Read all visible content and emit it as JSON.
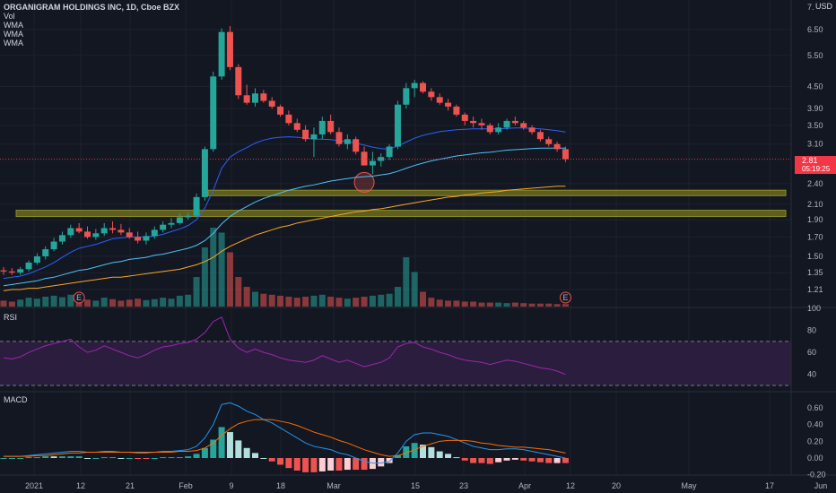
{
  "header": {
    "symbol_title": "ORGANIGRAM HOLDINGS INC, 1D, Cboe BZX",
    "indicators": [
      "Vol",
      "WMA",
      "WMA",
      "WMA"
    ],
    "currency": "USD"
  },
  "price_axis": {
    "ticks": [
      "7.",
      "6.50",
      "5.50",
      "4.50",
      "3.90",
      "3.50",
      "3.10",
      "2.40",
      "2.10",
      "1.90",
      "1.70",
      "1.50",
      "1.35",
      "1.21"
    ],
    "last_price": "2.81",
    "countdown": "05:19:25"
  },
  "rsi": {
    "label": "RSI",
    "ticks": [
      "100",
      "80",
      "60",
      "40"
    ]
  },
  "macd": {
    "label": "MACD",
    "ticks": [
      "0.60",
      "0.40",
      "0.20",
      "0.00",
      "-0.20"
    ]
  },
  "time_axis": {
    "labels": [
      "2021",
      "12",
      "21",
      "Feb",
      "9",
      "18",
      "Mar",
      "15",
      "23",
      "Apr",
      "12",
      "20",
      "May",
      "17",
      "Jun"
    ]
  },
  "earnings_markers": [
    "E",
    "E"
  ],
  "colors": {
    "up": "#26a69a",
    "down": "#ef5350",
    "background": "#131722",
    "wma_fast": "#2962ff",
    "wma_mid": "#4fc3f7",
    "wma_slow": "#f9a825",
    "zone": "#6b6b1f",
    "rsi_line": "#9c27b0",
    "rsi_band": "#2b1d3d",
    "macd_line": "#2196f3",
    "signal_line": "#ff6d00"
  },
  "chart_data": {
    "type": "candlestick",
    "dates": [
      "2021-01-04",
      "2021-01-05",
      "2021-01-06",
      "2021-01-07",
      "2021-01-08",
      "2021-01-11",
      "2021-01-12",
      "2021-01-13",
      "2021-01-14",
      "2021-01-15",
      "2021-01-19",
      "2021-01-20",
      "2021-01-21",
      "2021-01-22",
      "2021-01-25",
      "2021-01-26",
      "2021-01-27",
      "2021-01-28",
      "2021-01-29",
      "2021-02-01",
      "2021-02-02",
      "2021-02-03",
      "2021-02-04",
      "2021-02-05",
      "2021-02-08",
      "2021-02-09",
      "2021-02-10",
      "2021-02-11",
      "2021-02-12",
      "2021-02-16",
      "2021-02-17",
      "2021-02-18",
      "2021-02-19",
      "2021-02-22",
      "2021-02-23",
      "2021-02-24",
      "2021-02-25",
      "2021-02-26",
      "2021-03-01",
      "2021-03-02",
      "2021-03-03",
      "2021-03-04",
      "2021-03-05",
      "2021-03-08",
      "2021-03-09",
      "2021-03-10",
      "2021-03-11",
      "2021-03-12",
      "2021-03-15",
      "2021-03-16",
      "2021-03-17",
      "2021-03-18",
      "2021-03-19",
      "2021-03-22",
      "2021-03-23",
      "2021-03-24",
      "2021-03-25",
      "2021-03-26",
      "2021-03-29",
      "2021-03-30",
      "2021-03-31",
      "2021-04-01",
      "2021-04-05",
      "2021-04-06",
      "2021-04-07",
      "2021-04-08",
      "2021-04-09",
      "2021-04-12"
    ],
    "open": [
      1.37,
      1.36,
      1.35,
      1.38,
      1.44,
      1.5,
      1.57,
      1.65,
      1.72,
      1.8,
      1.76,
      1.7,
      1.74,
      1.8,
      1.78,
      1.75,
      1.7,
      1.66,
      1.71,
      1.78,
      1.84,
      1.86,
      1.93,
      1.95,
      2.2,
      3.0,
      4.8,
      6.4,
      5.1,
      4.25,
      4.05,
      4.3,
      4.1,
      3.95,
      3.75,
      3.55,
      3.4,
      3.2,
      3.3,
      3.6,
      3.35,
      3.1,
      3.2,
      2.95,
      2.7,
      2.78,
      2.85,
      3.05,
      4.0,
      4.45,
      4.6,
      4.35,
      4.2,
      4.05,
      3.95,
      3.75,
      3.6,
      3.55,
      3.5,
      3.35,
      3.45,
      3.6,
      3.55,
      3.45,
      3.35,
      3.2,
      3.1,
      3.0
    ],
    "high": [
      1.4,
      1.39,
      1.4,
      1.46,
      1.53,
      1.6,
      1.69,
      1.76,
      1.84,
      1.86,
      1.82,
      1.79,
      1.86,
      1.88,
      1.85,
      1.8,
      1.76,
      1.75,
      1.82,
      1.88,
      1.92,
      1.98,
      1.99,
      2.25,
      3.05,
      4.95,
      6.55,
      6.65,
      5.2,
      4.55,
      4.45,
      4.4,
      4.2,
      4.0,
      3.85,
      3.65,
      3.5,
      3.45,
      3.7,
      3.75,
      3.45,
      3.3,
      3.25,
      3.05,
      2.95,
      2.92,
      3.1,
      4.1,
      4.6,
      4.7,
      4.65,
      4.45,
      4.3,
      4.15,
      4.0,
      3.8,
      3.7,
      3.65,
      3.55,
      3.55,
      3.65,
      3.7,
      3.6,
      3.5,
      3.4,
      3.25,
      3.15,
      3.05
    ],
    "low": [
      1.33,
      1.33,
      1.33,
      1.36,
      1.42,
      1.47,
      1.55,
      1.62,
      1.69,
      1.74,
      1.68,
      1.67,
      1.71,
      1.74,
      1.72,
      1.68,
      1.63,
      1.62,
      1.68,
      1.75,
      1.8,
      1.84,
      1.9,
      1.93,
      2.15,
      2.95,
      4.7,
      5.0,
      4.15,
      4.0,
      3.95,
      4.05,
      3.9,
      3.7,
      3.5,
      3.35,
      3.15,
      2.85,
      3.2,
      3.3,
      3.05,
      3.0,
      2.9,
      2.7,
      2.55,
      2.68,
      2.8,
      3.0,
      3.9,
      4.2,
      4.3,
      4.1,
      4.0,
      3.85,
      3.7,
      3.5,
      3.45,
      3.4,
      3.3,
      3.3,
      3.4,
      3.5,
      3.4,
      3.3,
      3.15,
      3.05,
      2.95,
      2.76
    ],
    "close": [
      1.36,
      1.35,
      1.38,
      1.44,
      1.5,
      1.57,
      1.65,
      1.72,
      1.8,
      1.76,
      1.7,
      1.74,
      1.8,
      1.78,
      1.75,
      1.7,
      1.66,
      1.71,
      1.78,
      1.84,
      1.86,
      1.93,
      1.95,
      2.2,
      3.0,
      4.8,
      6.4,
      5.1,
      4.25,
      4.05,
      4.3,
      4.1,
      3.95,
      3.75,
      3.55,
      3.4,
      3.2,
      3.3,
      3.6,
      3.35,
      3.1,
      3.2,
      2.95,
      2.7,
      2.78,
      2.85,
      3.05,
      4.0,
      4.45,
      4.6,
      4.35,
      4.2,
      4.05,
      3.95,
      3.75,
      3.6,
      3.55,
      3.5,
      3.35,
      3.45,
      3.6,
      3.55,
      3.45,
      3.35,
      3.2,
      3.1,
      3.0,
      2.81
    ],
    "volume": [
      12,
      10,
      14,
      18,
      16,
      20,
      22,
      19,
      24,
      16,
      14,
      12,
      18,
      15,
      12,
      14,
      16,
      13,
      15,
      18,
      16,
      22,
      24,
      60,
      120,
      160,
      150,
      110,
      60,
      40,
      30,
      26,
      24,
      22,
      20,
      18,
      20,
      22,
      24,
      20,
      18,
      16,
      18,
      20,
      22,
      24,
      26,
      40,
      100,
      70,
      30,
      18,
      14,
      12,
      12,
      10,
      10,
      8,
      8,
      8,
      7,
      8,
      7,
      6,
      6,
      6,
      5,
      5
    ],
    "rsi": [
      55,
      54,
      56,
      60,
      63,
      66,
      68,
      70,
      72,
      65,
      60,
      62,
      66,
      63,
      60,
      57,
      55,
      58,
      62,
      65,
      66,
      68,
      69,
      72,
      78,
      88,
      92,
      72,
      64,
      60,
      63,
      60,
      58,
      55,
      53,
      52,
      51,
      53,
      57,
      54,
      51,
      53,
      50,
      47,
      49,
      51,
      55,
      65,
      68,
      69,
      65,
      63,
      60,
      58,
      55,
      53,
      52,
      51,
      49,
      51,
      53,
      52,
      50,
      48,
      46,
      45,
      43,
      40
    ],
    "macd": [
      0.02,
      0.02,
      0.02,
      0.03,
      0.04,
      0.05,
      0.06,
      0.07,
      0.08,
      0.08,
      0.07,
      0.07,
      0.08,
      0.08,
      0.07,
      0.07,
      0.06,
      0.06,
      0.07,
      0.08,
      0.08,
      0.09,
      0.1,
      0.14,
      0.24,
      0.4,
      0.64,
      0.66,
      0.62,
      0.56,
      0.52,
      0.46,
      0.42,
      0.36,
      0.3,
      0.24,
      0.18,
      0.14,
      0.12,
      0.1,
      0.06,
      0.04,
      0.0,
      -0.04,
      -0.06,
      -0.06,
      -0.04,
      0.06,
      0.2,
      0.28,
      0.3,
      0.3,
      0.28,
      0.26,
      0.22,
      0.18,
      0.14,
      0.12,
      0.1,
      0.1,
      0.11,
      0.11,
      0.1,
      0.08,
      0.06,
      0.04,
      0.02,
      0.0
    ],
    "signal": [
      0.02,
      0.02,
      0.02,
      0.02,
      0.03,
      0.03,
      0.04,
      0.05,
      0.06,
      0.06,
      0.07,
      0.07,
      0.07,
      0.07,
      0.07,
      0.07,
      0.07,
      0.07,
      0.07,
      0.07,
      0.07,
      0.08,
      0.08,
      0.09,
      0.12,
      0.18,
      0.27,
      0.35,
      0.41,
      0.44,
      0.46,
      0.46,
      0.46,
      0.44,
      0.42,
      0.39,
      0.35,
      0.31,
      0.28,
      0.25,
      0.21,
      0.18,
      0.14,
      0.1,
      0.07,
      0.04,
      0.02,
      0.03,
      0.06,
      0.1,
      0.14,
      0.17,
      0.2,
      0.21,
      0.21,
      0.21,
      0.2,
      0.18,
      0.17,
      0.15,
      0.14,
      0.13,
      0.13,
      0.12,
      0.11,
      0.1,
      0.08,
      0.06
    ],
    "wma_fast": [
      1.3,
      1.31,
      1.32,
      1.34,
      1.37,
      1.4,
      1.44,
      1.49,
      1.54,
      1.58,
      1.6,
      1.62,
      1.65,
      1.68,
      1.69,
      1.7,
      1.7,
      1.7,
      1.71,
      1.73,
      1.76,
      1.79,
      1.83,
      1.9,
      2.05,
      2.3,
      2.65,
      2.85,
      2.95,
      3.03,
      3.12,
      3.18,
      3.22,
      3.24,
      3.25,
      3.24,
      3.22,
      3.2,
      3.2,
      3.19,
      3.17,
      3.15,
      3.12,
      3.08,
      3.04,
      3.01,
      3.0,
      3.06,
      3.14,
      3.22,
      3.28,
      3.32,
      3.36,
      3.38,
      3.4,
      3.41,
      3.42,
      3.42,
      3.42,
      3.42,
      3.43,
      3.44,
      3.44,
      3.43,
      3.42,
      3.4,
      3.38,
      3.35
    ],
    "wma_mid": [
      1.24,
      1.25,
      1.26,
      1.27,
      1.28,
      1.3,
      1.31,
      1.33,
      1.35,
      1.37,
      1.38,
      1.4,
      1.42,
      1.44,
      1.45,
      1.47,
      1.48,
      1.49,
      1.51,
      1.52,
      1.54,
      1.56,
      1.58,
      1.61,
      1.66,
      1.74,
      1.85,
      1.94,
      2.01,
      2.07,
      2.13,
      2.18,
      2.22,
      2.26,
      2.3,
      2.33,
      2.36,
      2.38,
      2.41,
      2.44,
      2.46,
      2.48,
      2.5,
      2.51,
      2.52,
      2.54,
      2.56,
      2.6,
      2.65,
      2.7,
      2.74,
      2.78,
      2.81,
      2.84,
      2.87,
      2.89,
      2.91,
      2.93,
      2.94,
      2.96,
      2.98,
      2.99,
      3.0,
      3.01,
      3.02,
      3.02,
      3.02,
      3.02
    ],
    "wma_slow": [
      1.2,
      1.21,
      1.21,
      1.22,
      1.22,
      1.23,
      1.24,
      1.25,
      1.26,
      1.27,
      1.28,
      1.29,
      1.3,
      1.31,
      1.31,
      1.32,
      1.33,
      1.34,
      1.35,
      1.36,
      1.37,
      1.38,
      1.4,
      1.42,
      1.45,
      1.49,
      1.55,
      1.6,
      1.64,
      1.68,
      1.72,
      1.75,
      1.78,
      1.81,
      1.83,
      1.86,
      1.88,
      1.9,
      1.92,
      1.94,
      1.96,
      1.98,
      2.0,
      2.01,
      2.03,
      2.04,
      2.06,
      2.08,
      2.1,
      2.12,
      2.14,
      2.16,
      2.18,
      2.2,
      2.21,
      2.23,
      2.24,
      2.26,
      2.27,
      2.28,
      2.3,
      2.31,
      2.32,
      2.33,
      2.34,
      2.35,
      2.36,
      2.36
    ]
  }
}
